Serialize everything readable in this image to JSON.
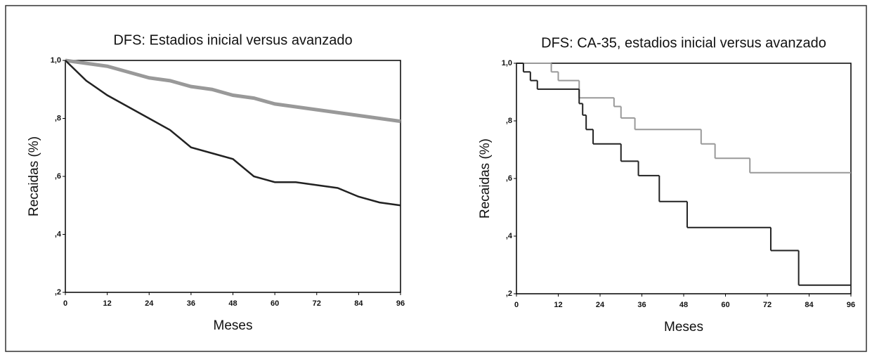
{
  "chart_data": [
    {
      "type": "line",
      "title": "DFS: Estadios inicial versus avanzado",
      "x_label": "Meses",
      "y_label": "Recaidas (%)",
      "xlim": [
        0,
        96
      ],
      "xticks": [
        0,
        12,
        24,
        36,
        48,
        60,
        72,
        84,
        96
      ],
      "ylim": [
        0.2,
        1.0
      ],
      "yticks": [
        {
          "value": 0.2,
          "label": ",2"
        },
        {
          "value": 0.4,
          "label": ",4"
        },
        {
          "value": 0.6,
          "label": ",6"
        },
        {
          "value": 0.8,
          "label": ",8"
        },
        {
          "value": 1.0,
          "label": "1,0"
        }
      ],
      "series": [
        {
          "color": "#999999",
          "x": [
            0,
            6,
            12,
            18,
            24,
            30,
            36,
            42,
            48,
            54,
            60,
            66,
            72,
            78,
            84,
            90,
            96
          ],
          "values": [
            1.0,
            0.99,
            0.98,
            0.96,
            0.94,
            0.93,
            0.91,
            0.9,
            0.88,
            0.87,
            0.85,
            0.84,
            0.83,
            0.82,
            0.81,
            0.8,
            0.79
          ]
        },
        {
          "color": "#222222",
          "x": [
            0,
            6,
            12,
            18,
            24,
            30,
            36,
            42,
            48,
            54,
            60,
            66,
            72,
            78,
            84,
            90,
            96
          ],
          "values": [
            1.0,
            0.93,
            0.88,
            0.84,
            0.8,
            0.76,
            0.7,
            0.68,
            0.66,
            0.6,
            0.58,
            0.58,
            0.57,
            0.56,
            0.53,
            0.51,
            0.5
          ]
        }
      ]
    },
    {
      "type": "step",
      "title": "DFS: CA-35, estadios inicial versus avanzado",
      "x_label": "Meses",
      "y_label": "Recaidas (%)",
      "xlim": [
        0,
        96
      ],
      "xticks": [
        0,
        12,
        24,
        36,
        48,
        60,
        72,
        84,
        96
      ],
      "ylim": [
        0.2,
        1.0
      ],
      "yticks": [
        {
          "value": 0.2,
          "label": ",2"
        },
        {
          "value": 0.4,
          "label": ",4"
        },
        {
          "value": 0.6,
          "label": ",6"
        },
        {
          "value": 0.8,
          "label": ",8"
        },
        {
          "value": 1.0,
          "label": "1,0"
        }
      ],
      "series": [
        {
          "color": "#999999",
          "x": [
            0,
            10,
            12,
            18,
            28,
            30,
            34,
            53,
            57,
            67,
            96
          ],
          "values": [
            1.0,
            0.97,
            0.94,
            0.88,
            0.85,
            0.81,
            0.77,
            0.72,
            0.67,
            0.62,
            0.62
          ]
        },
        {
          "color": "#222222",
          "x": [
            0,
            2,
            4,
            6,
            18,
            19,
            20,
            22,
            30,
            35,
            41,
            49,
            73,
            81,
            96
          ],
          "values": [
            1.0,
            0.97,
            0.94,
            0.91,
            0.86,
            0.82,
            0.77,
            0.72,
            0.66,
            0.61,
            0.52,
            0.43,
            0.35,
            0.23,
            0.23
          ]
        }
      ]
    }
  ]
}
